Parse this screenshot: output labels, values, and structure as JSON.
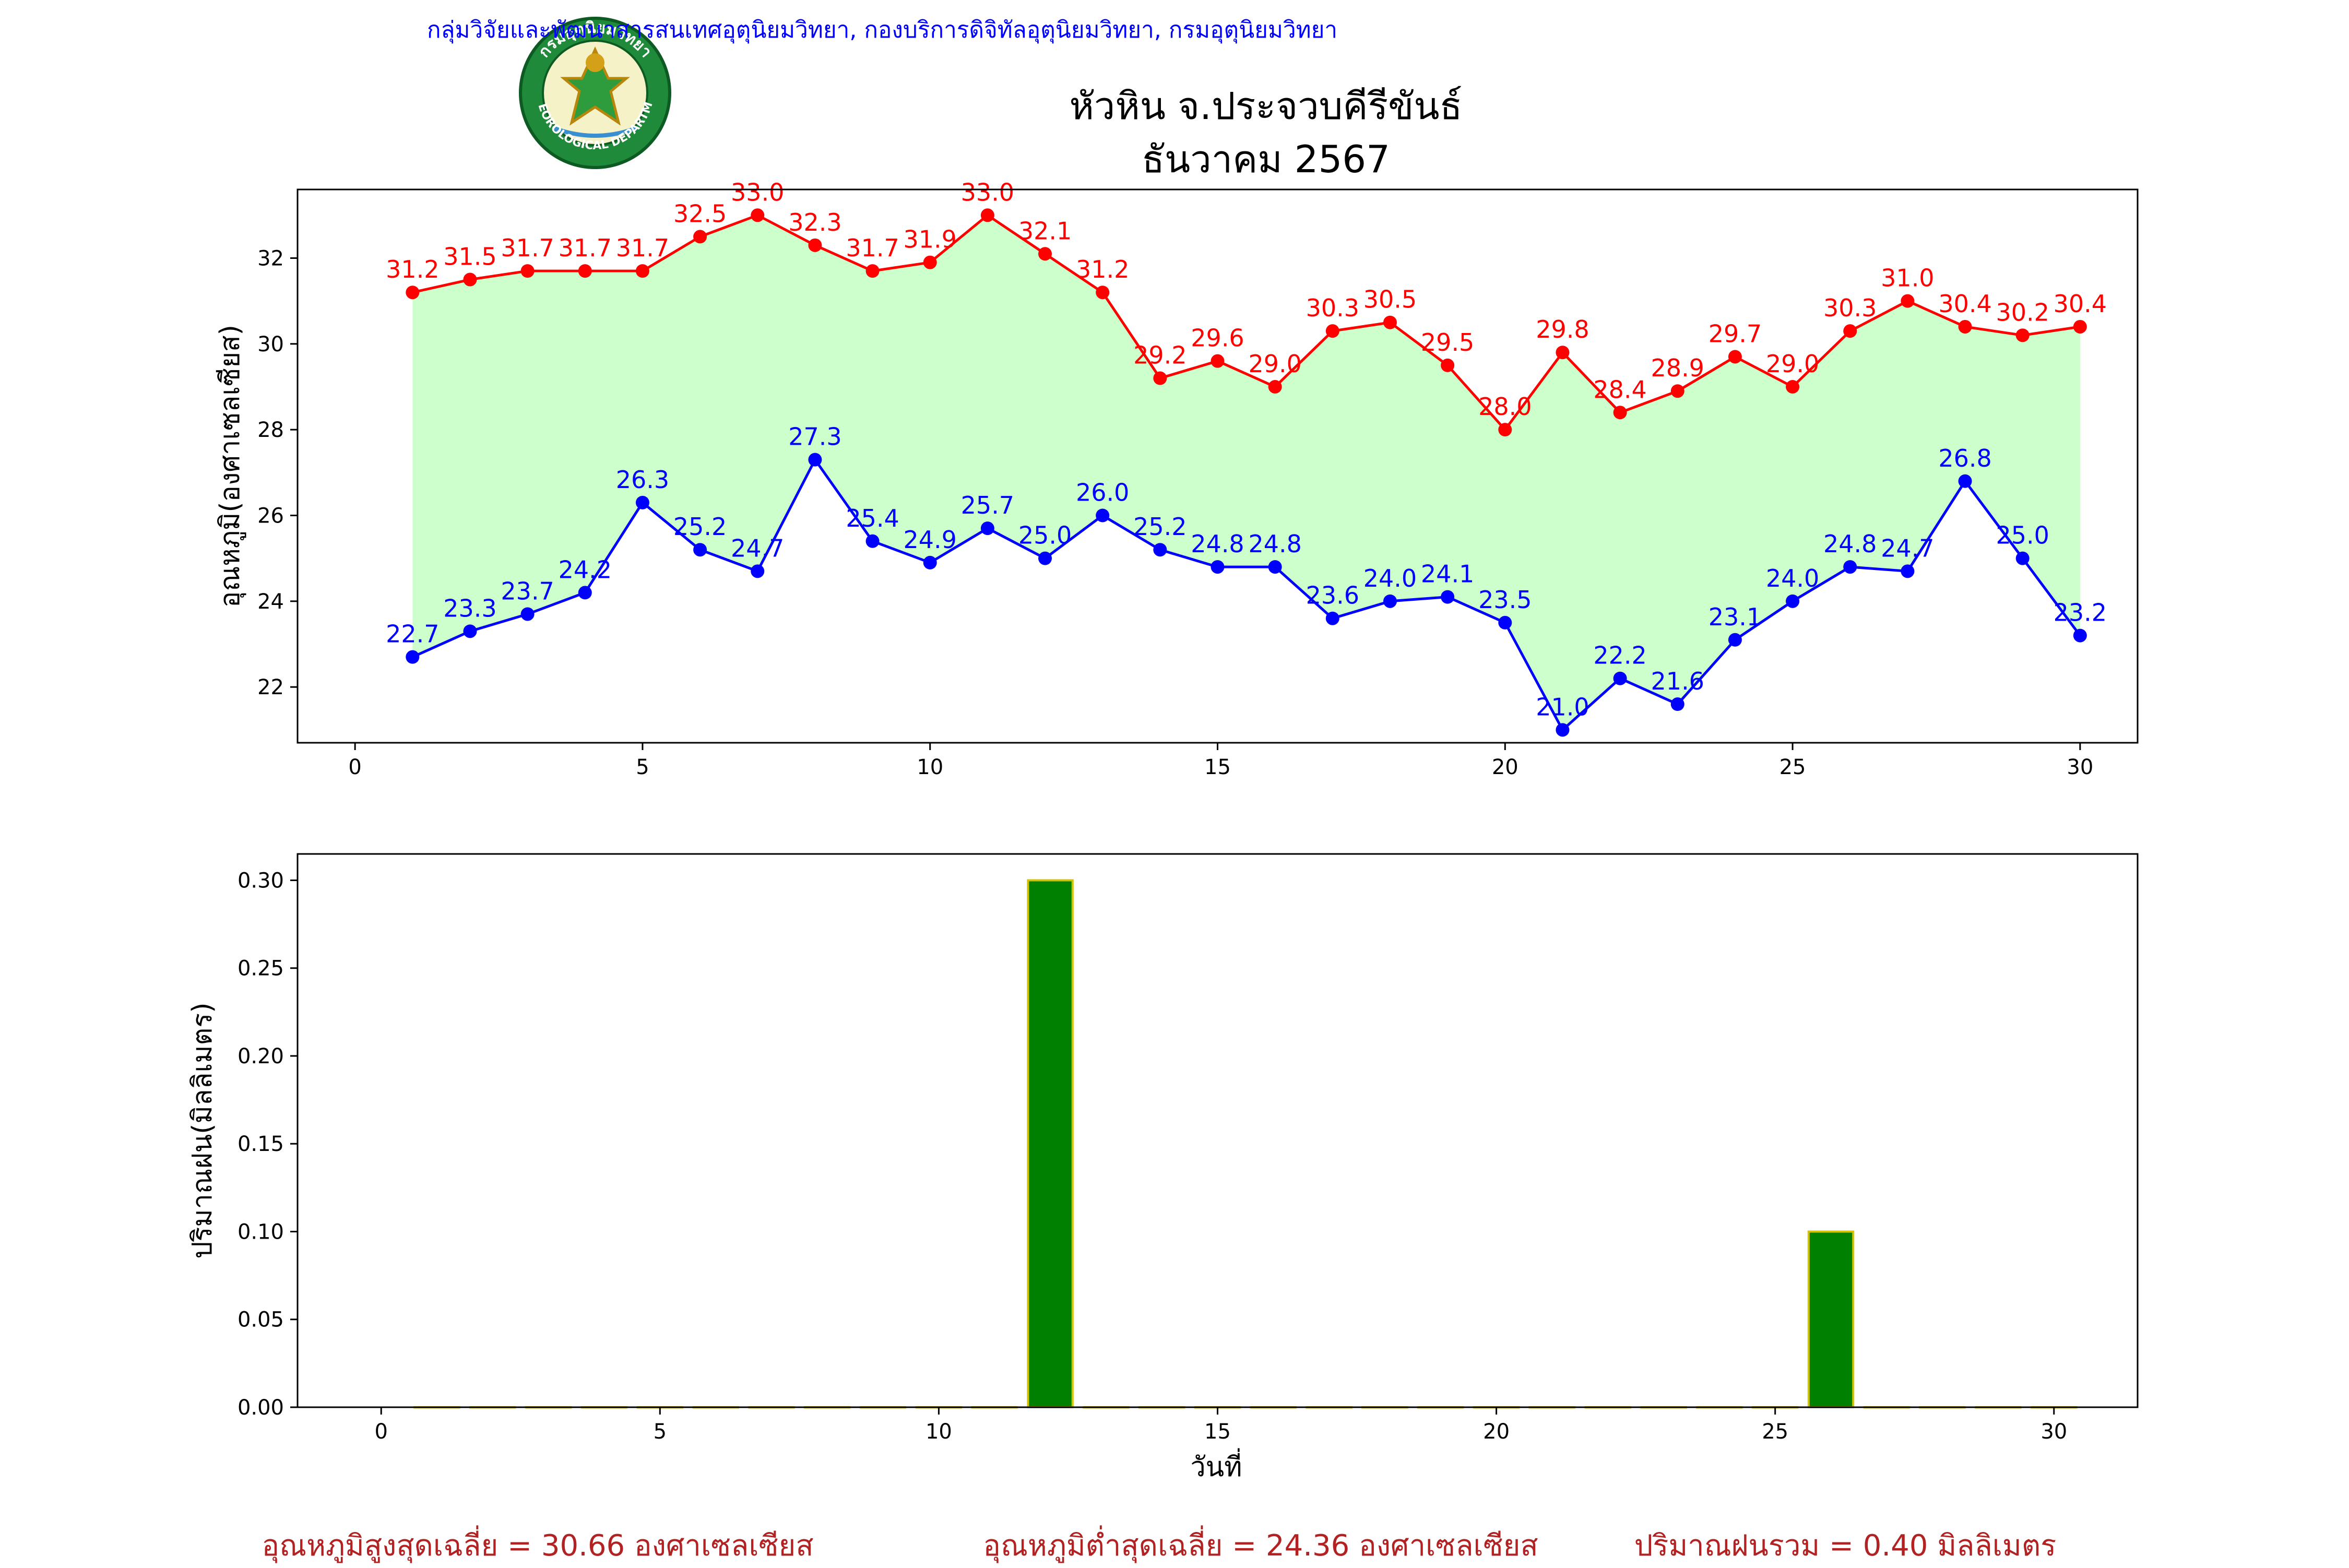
{
  "header": {
    "organization": "กลุ่มวิจัยและพัฒนาสารสนเทศอุตุนิยมวิทยา, กองบริการดิจิทัลอุตุนิยมวิทยา, กรมอุตุนิยมวิทยา",
    "logo_text_top": "กรมอุตุนิยมวิทยา",
    "logo_text_bottom": "METEOROLOGICAL DEPARTMENT",
    "title_line1": "หัวหิน จ.ประจวบคีรีขันธ์",
    "title_line2": "ธันวาคม 2567"
  },
  "colors": {
    "max_line": "#ff0000",
    "min_line": "#0000ff",
    "fill": "#ccffcc",
    "bar_fill": "#008000",
    "bar_edge": "#d4c400",
    "org_text": "#0000ff",
    "summary_text": "#b22222"
  },
  "chart_data": [
    {
      "type": "line",
      "ylabel": "อุณหภูมิ(องศาเซลเซียส)",
      "xlim": [
        -1,
        31
      ],
      "ylim": [
        20.7,
        33.6
      ],
      "xticks": [
        0,
        5,
        10,
        15,
        20,
        25,
        30
      ],
      "yticks": [
        22,
        24,
        26,
        28,
        30,
        32
      ],
      "grid": false,
      "x": [
        1,
        2,
        3,
        4,
        5,
        6,
        7,
        8,
        9,
        10,
        11,
        12,
        13,
        14,
        15,
        16,
        17,
        18,
        19,
        20,
        21,
        22,
        23,
        24,
        25,
        26,
        27,
        28,
        29,
        30
      ],
      "series": [
        {
          "values": [
            31.2,
            31.5,
            31.7,
            31.7,
            31.7,
            32.5,
            33.0,
            32.3,
            31.7,
            31.9,
            33.0,
            32.1,
            31.2,
            29.2,
            29.6,
            29.0,
            30.3,
            30.5,
            29.5,
            28.0,
            29.8,
            28.4,
            28.9,
            29.7,
            29.0,
            30.3,
            31.0,
            30.4,
            30.2,
            30.4
          ]
        },
        {
          "values": [
            22.7,
            23.3,
            23.7,
            24.2,
            26.3,
            25.2,
            24.7,
            27.3,
            25.4,
            24.9,
            25.7,
            25.0,
            26.0,
            25.2,
            24.8,
            24.8,
            23.6,
            24.0,
            24.1,
            23.5,
            21.0,
            22.2,
            21.6,
            23.1,
            24.0,
            24.8,
            24.7,
            26.8,
            25.0,
            23.2
          ]
        }
      ]
    },
    {
      "type": "bar",
      "xlabel": "วันที่",
      "ylabel": "ปริมาณฝน(มิลลิเมตร)",
      "xlim": [
        -1.5,
        31.5
      ],
      "ylim": [
        0,
        0.315
      ],
      "xticks": [
        0,
        5,
        10,
        15,
        20,
        25,
        30
      ],
      "yticks": [
        "0.00",
        "0.05",
        "0.10",
        "0.15",
        "0.20",
        "0.25",
        "0.30"
      ],
      "grid": false,
      "categories": [
        1,
        2,
        3,
        4,
        5,
        6,
        7,
        8,
        9,
        10,
        11,
        12,
        13,
        14,
        15,
        16,
        17,
        18,
        19,
        20,
        21,
        22,
        23,
        24,
        25,
        26,
        27,
        28,
        29,
        30
      ],
      "values": [
        0,
        0,
        0,
        0,
        0,
        0,
        0,
        0,
        0,
        0,
        0,
        0.3,
        0,
        0,
        0,
        0,
        0,
        0,
        0,
        0,
        0,
        0,
        0,
        0,
        0,
        0.1,
        0,
        0,
        0,
        0
      ]
    }
  ],
  "summary": {
    "avg_max": "อุณหภูมิสูงสุดเฉลี่ย = 30.66 องศาเซลเซียส",
    "avg_min": "อุณหภูมิต่ำสุดเฉลี่ย = 24.36 องศาเซลเซียส",
    "total_rain": "ปริมาณฝนรวม = 0.40 มิลลิเมตร"
  }
}
